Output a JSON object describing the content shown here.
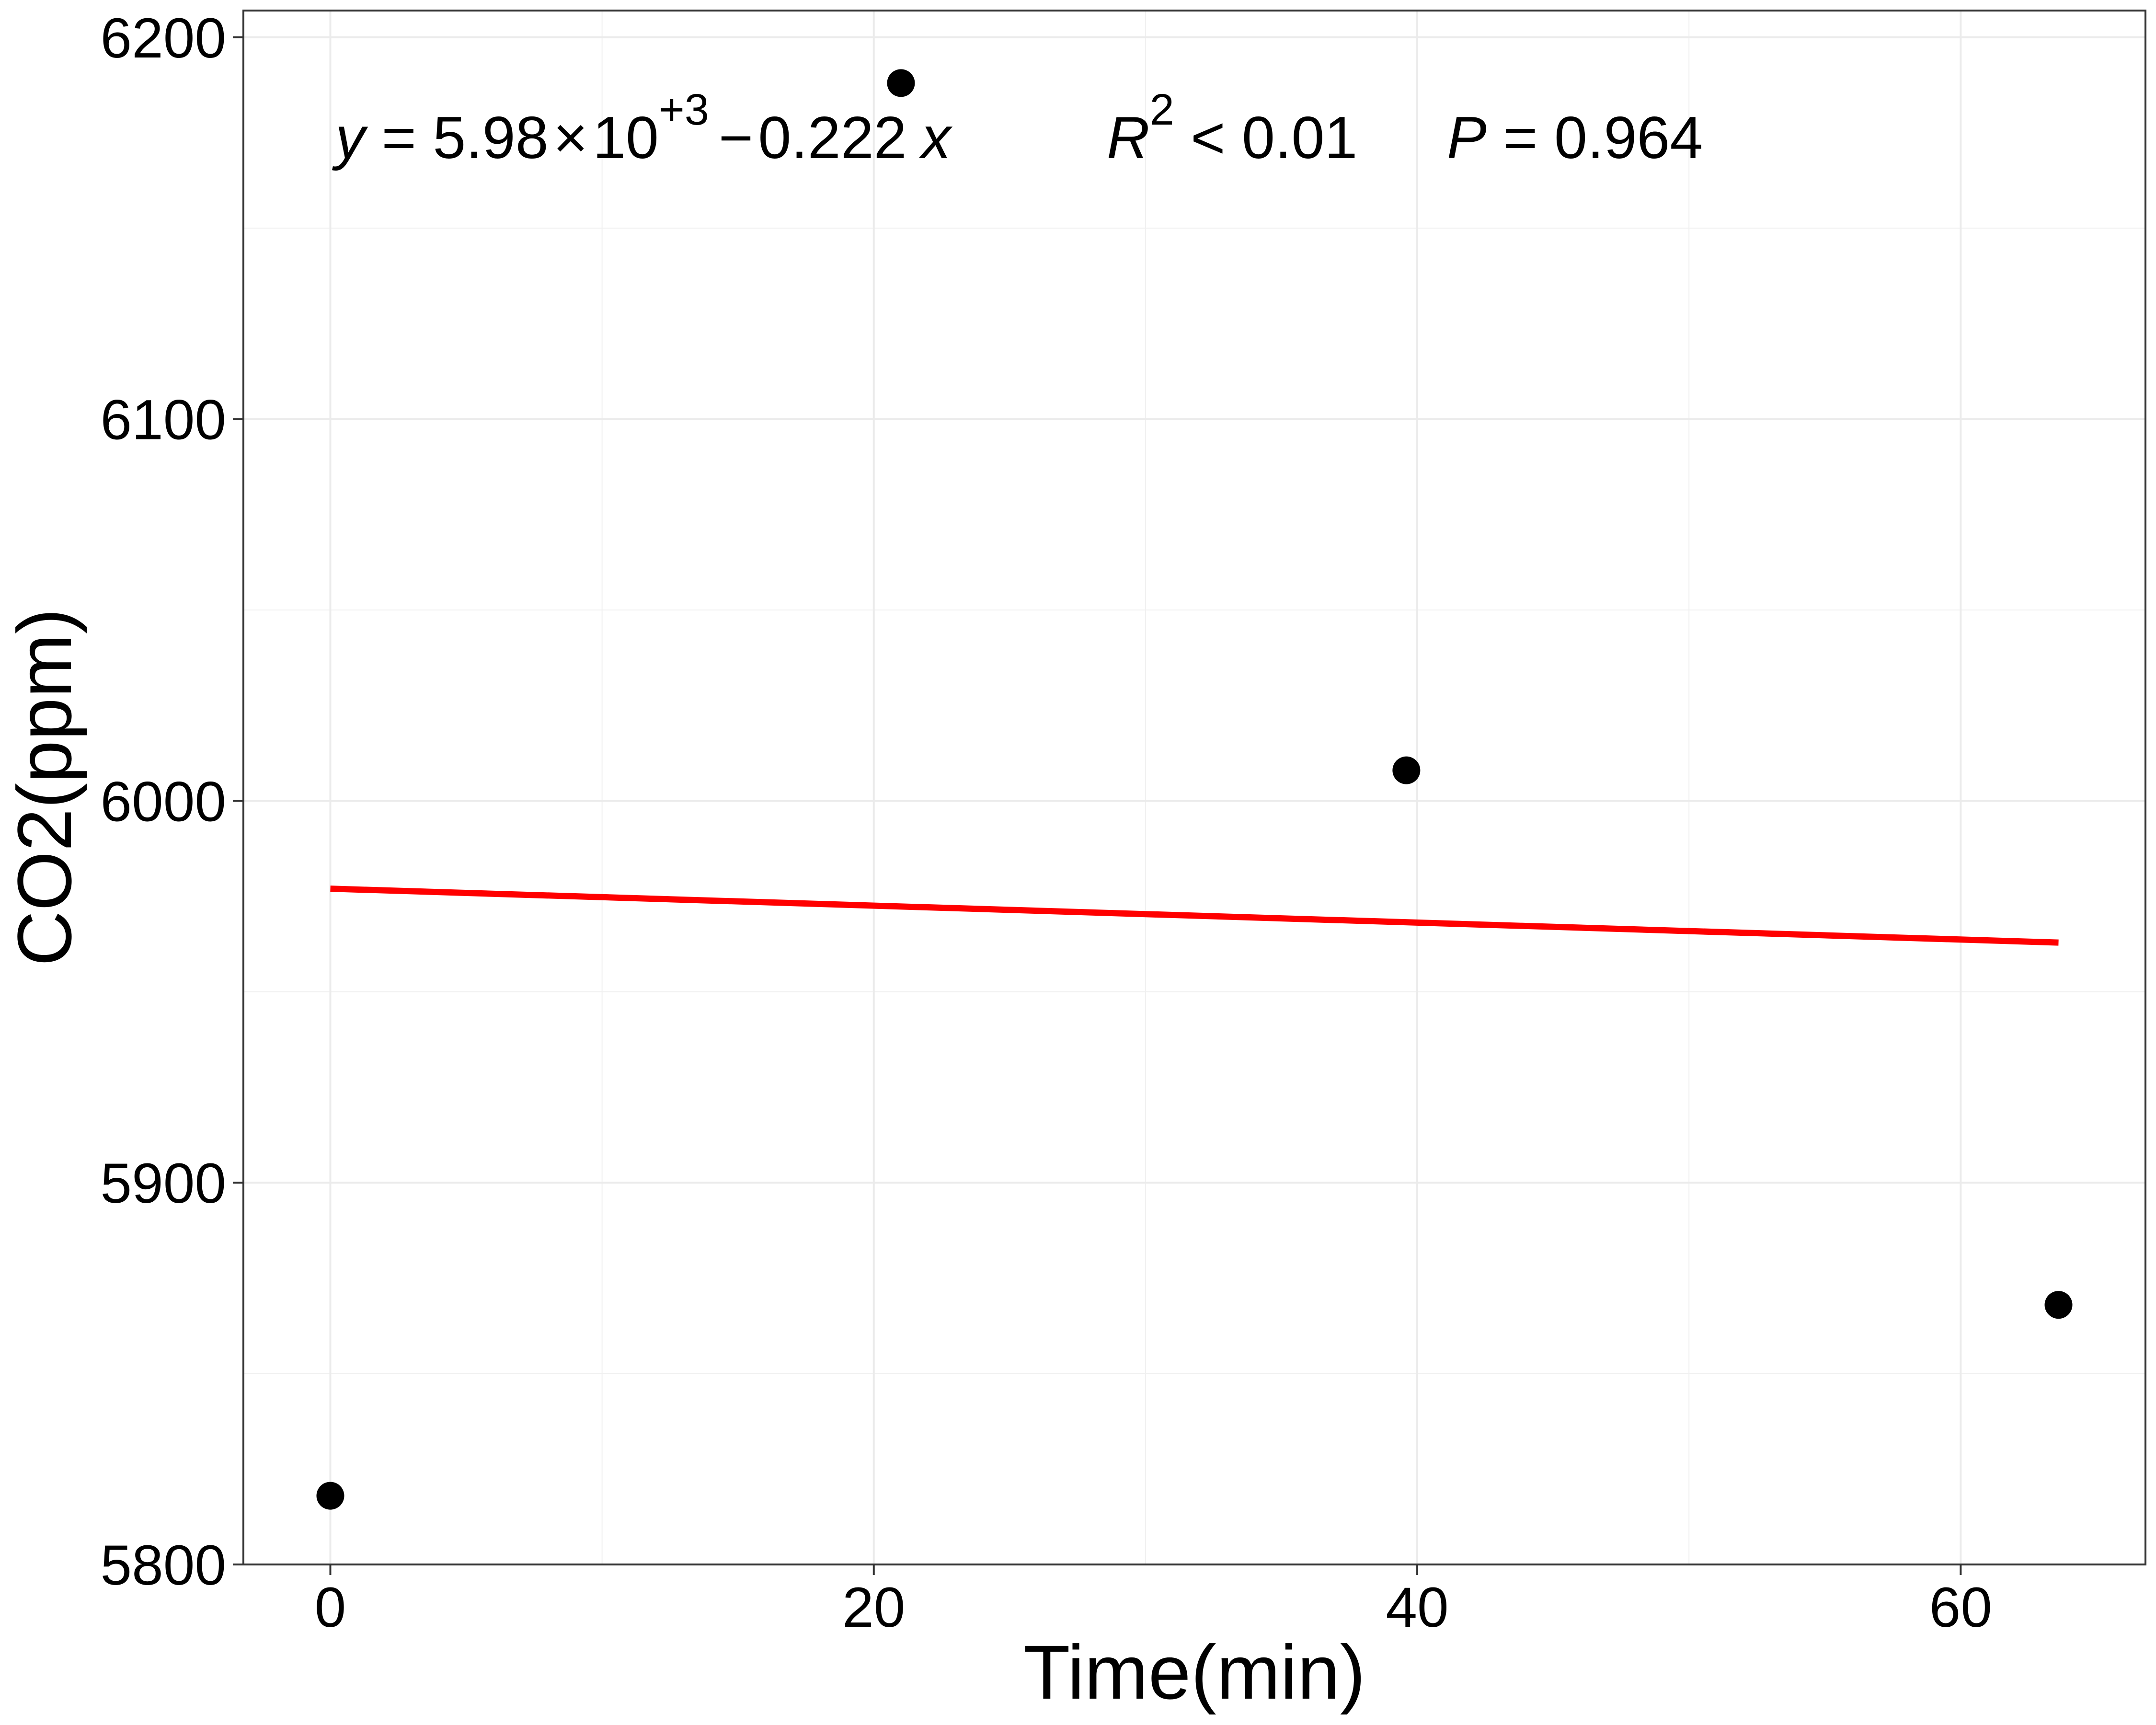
{
  "chart_data": {
    "type": "scatter",
    "xlabel": "Time(min)",
    "ylabel": "CO2(ppm)",
    "xlim": [
      -3.2,
      66.8
    ],
    "ylim": [
      5800,
      6207
    ],
    "x_ticks": [
      0,
      20,
      40,
      60
    ],
    "y_ticks": [
      5800,
      5900,
      6000,
      6100,
      6200
    ],
    "x_tick_labels": [
      "0",
      "20",
      "40",
      "60"
    ],
    "y_tick_labels": [
      "5800",
      "5900",
      "6000",
      "6100",
      "6200"
    ],
    "grid": true,
    "points": [
      {
        "x": 0,
        "y": 5818
      },
      {
        "x": 21,
        "y": 6188
      },
      {
        "x": 39.6,
        "y": 6008
      },
      {
        "x": 63.6,
        "y": 5868
      }
    ],
    "fit_line": {
      "intercept": 5977,
      "slope": -0.222,
      "x_range": [
        0,
        63.6
      ],
      "color": "#ff0000"
    },
    "point_color": "#000000",
    "annotation": {
      "y_var": "y",
      "equals1": " = 5.98",
      "times": "×",
      "ten": "10",
      "exp": "+3",
      "minus": "−",
      "slope_text": "0.222",
      "x_var": "x",
      "r_var": "R",
      "r_exp": "2",
      "r_rest": " < 0.01",
      "p_var": "P",
      "p_rest": " = 0.964"
    }
  }
}
